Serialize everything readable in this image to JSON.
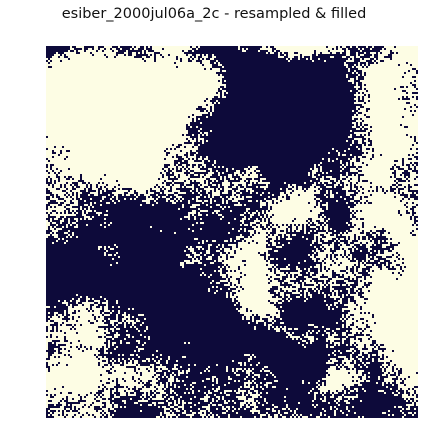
{
  "chart_data": {
    "type": "heatmap",
    "title": "esiber_2000jul06a_2c - resampled & filled",
    "xlabel": "",
    "ylabel": "",
    "axes_visible": false,
    "grid": false,
    "legend": "none",
    "classes": [
      0,
      1
    ],
    "colors": {
      "0": "#0d0a3a",
      "1": "#fdfde4"
    },
    "description_of_regions": [
      "Light (class 1) mass in the upper-left quadrant",
      "Dark (class 0) region in the upper-center and upper-right",
      "Dark (class 0) diagonal band from the left-center toward the lower-middle",
      "Light (class 1) speckled mass across the lower half and right side"
    ]
  }
}
